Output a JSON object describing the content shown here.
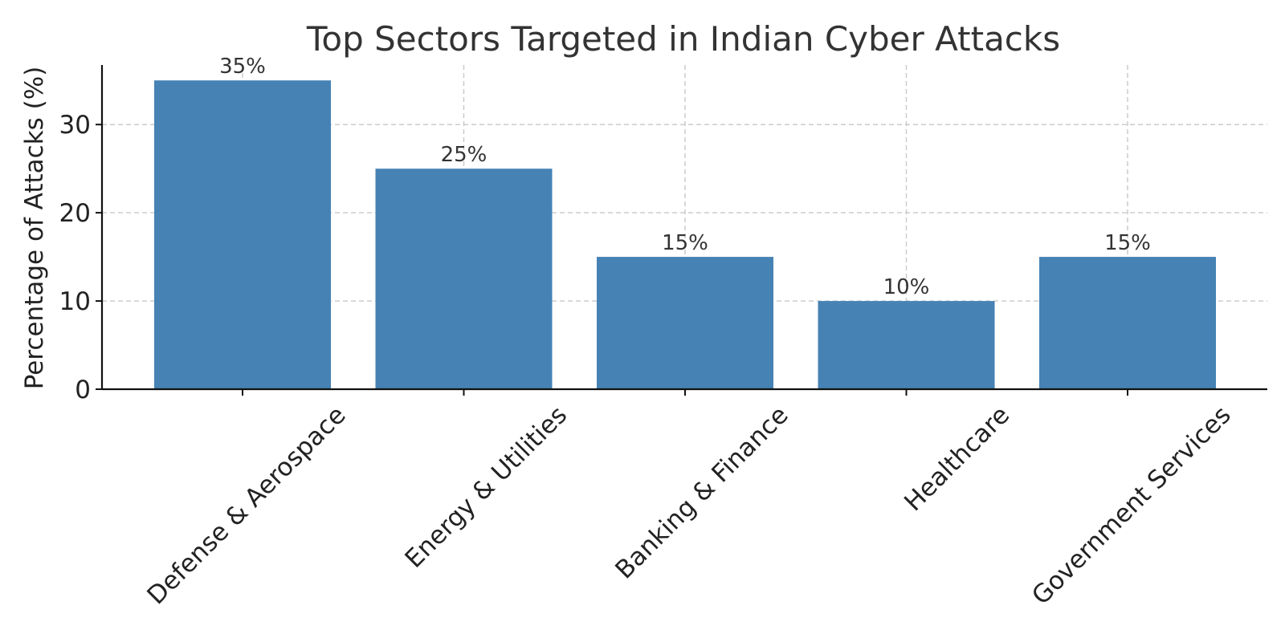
{
  "chart_data": {
    "type": "bar",
    "title": "Top Sectors Targeted in Indian Cyber Attacks",
    "xlabel": "",
    "ylabel": "Percentage of Attacks (%)",
    "categories": [
      "Defense & Aerospace",
      "Energy & Utilities",
      "Banking & Finance",
      "Healthcare",
      "Government Services"
    ],
    "values": [
      35,
      25,
      15,
      10,
      15
    ],
    "data_labels": [
      "35%",
      "25%",
      "15%",
      "10%",
      "15%"
    ],
    "ylim": [
      0,
      36.75
    ],
    "yticks": [
      0,
      10,
      20,
      30
    ],
    "ytick_labels": [
      "0",
      "10",
      "20",
      "30"
    ],
    "grid": true,
    "bar_color": "#4682b4"
  }
}
